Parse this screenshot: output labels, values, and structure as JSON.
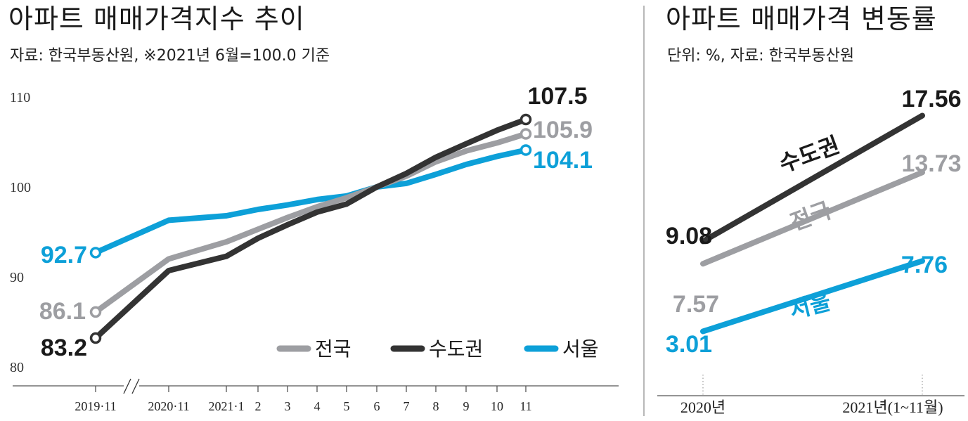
{
  "colors": {
    "nation": "#9d9ea2",
    "capital": "#333333",
    "seoul": "#0da0d8"
  },
  "chart_data": [
    {
      "type": "line",
      "title": "아파트 매매가격지수 추이",
      "subtitle": "자료: 한국부동산원, ※2021년 6월=100.0 기준",
      "xlabel": "",
      "ylabel": "",
      "ylim": [
        80,
        110
      ],
      "yticks": [
        "80",
        "90",
        "100",
        "110"
      ],
      "categories": [
        "2019·11",
        "2020·11",
        "2021·1",
        "2",
        "3",
        "4",
        "5",
        "6",
        "7",
        "8",
        "9",
        "10",
        "11"
      ],
      "series": [
        {
          "name": "전국",
          "color": "nation",
          "values": [
            86.1,
            92.0,
            93.9,
            95.3,
            96.6,
            97.8,
            98.8,
            100.0,
            101.2,
            102.8,
            104.0,
            104.9,
            105.9
          ]
        },
        {
          "name": "수도권",
          "color": "capital",
          "values": [
            83.2,
            90.7,
            92.3,
            94.3,
            95.8,
            97.2,
            98.1,
            100.0,
            101.5,
            103.3,
            104.8,
            106.3,
            107.5
          ]
        },
        {
          "name": "서울",
          "color": "seoul",
          "values": [
            92.7,
            96.3,
            96.8,
            97.5,
            98.0,
            98.6,
            99.0,
            100.0,
            100.4,
            101.4,
            102.5,
            103.4,
            104.1
          ]
        }
      ],
      "data_labels": {
        "capital_end": "107.5",
        "nation_end": "105.9",
        "seoul_end": "104.1",
        "seoul_start": "92.7",
        "nation_start": "86.1",
        "capital_start": "83.2"
      },
      "legend": [
        "전국",
        "수도권",
        "서울"
      ],
      "legend_position": "bottom-right",
      "grid": false
    },
    {
      "type": "line",
      "title": "아파트 매매가격 변동률",
      "subtitle": "단위: %, 자료: 한국부동산원",
      "xlabel": "",
      "ylabel": "",
      "categories": [
        "2020년",
        "2021년(1~11월)"
      ],
      "series": [
        {
          "name": "수도권",
          "color": "capital",
          "values": [
            9.08,
            17.56
          ]
        },
        {
          "name": "전국",
          "color": "nation",
          "values": [
            7.57,
            13.73
          ]
        },
        {
          "name": "서울",
          "color": "seoul",
          "values": [
            3.01,
            7.76
          ]
        }
      ],
      "data_labels": [
        "9.08",
        "17.56",
        "7.57",
        "13.73",
        "3.01",
        "7.76"
      ],
      "grid": false
    }
  ]
}
